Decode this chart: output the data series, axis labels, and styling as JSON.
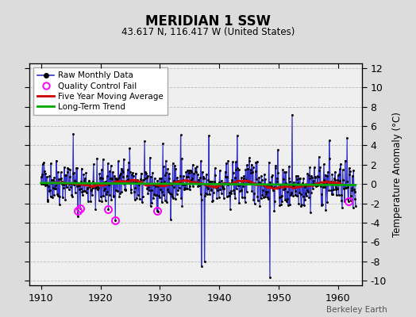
{
  "title": "MERIDIAN 1 SSW",
  "subtitle": "43.617 N, 116.417 W (United States)",
  "ylabel": "Temperature Anomaly (°C)",
  "watermark": "Berkeley Earth",
  "xlim": [
    1908,
    1964
  ],
  "ylim": [
    -10.5,
    12.5
  ],
  "yticks": [
    -10,
    -8,
    -6,
    -4,
    -2,
    0,
    2,
    4,
    6,
    8,
    10,
    12
  ],
  "xticks": [
    1910,
    1920,
    1930,
    1940,
    1950,
    1960
  ],
  "bg_color": "#dcdcdc",
  "plot_bg_color": "#efefef",
  "grid_color": "#bbbbbb",
  "line_color": "#3333cc",
  "ma_color": "#cc0000",
  "trend_color": "#00aa00",
  "seed": 42,
  "start_year": 1910,
  "end_year": 1963
}
